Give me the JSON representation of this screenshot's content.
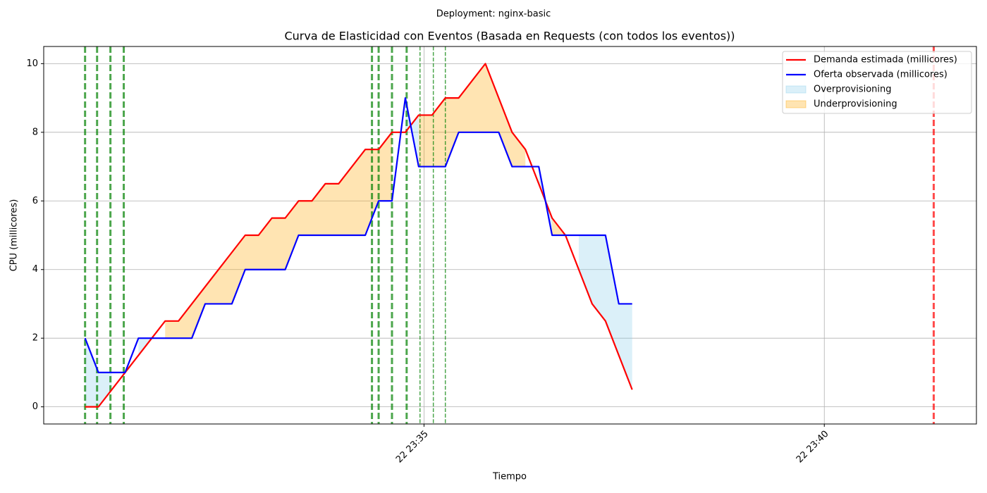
{
  "chart_data": {
    "type": "line",
    "suptitle": "Deployment: nginx-basic",
    "title": "Curva de Elasticidad con Eventos (Basada en Requests (con todos los eventos))",
    "xlabel": "Tiempo",
    "ylabel": "CPU (millicores)",
    "x": [
      84646,
      84656,
      84666,
      84676,
      84686,
      84696,
      84706,
      84716,
      84726,
      84736,
      84746,
      84756,
      84766,
      84776,
      84786,
      84796,
      84806,
      84816,
      84826,
      84836,
      84846,
      84856,
      84866,
      84876,
      84886,
      84896,
      84906,
      84916,
      84926,
      84936,
      84946,
      84956,
      84966,
      84976,
      84986,
      84996,
      85006,
      85016,
      85026,
      85036,
      85046,
      85056
    ],
    "series": [
      {
        "name": "Demanda estimada (millicores)",
        "color": "#ff0000",
        "values": [
          0,
          0,
          0.5,
          1,
          1.5,
          2,
          2.5,
          2.5,
          3,
          3.5,
          4,
          4.5,
          5,
          5,
          5.5,
          5.5,
          6,
          6,
          6.5,
          6.5,
          7,
          7.5,
          7.5,
          8,
          8,
          8.5,
          8.5,
          9,
          9,
          9.5,
          10,
          9,
          8,
          7.5,
          6.5,
          5.5,
          5,
          4,
          3,
          2.5,
          1.5,
          0.5
        ]
      },
      {
        "name": "Oferta observada (millicores)",
        "color": "#0000ff",
        "values": [
          2,
          1,
          1,
          1,
          2,
          2,
          2,
          2,
          2,
          3,
          3,
          3,
          4,
          4,
          4,
          4,
          5,
          5,
          5,
          5,
          5,
          5,
          6,
          6,
          9,
          7,
          7,
          7,
          8,
          8,
          8,
          8,
          7,
          7,
          7,
          5,
          5,
          5,
          5,
          5,
          3,
          3
        ]
      }
    ],
    "fills": [
      {
        "name": "Overprovisioning",
        "color": "#87ceeb",
        "above": 1,
        "below": 0
      },
      {
        "name": "Underprovisioning",
        "color": "#ffa500",
        "above": 0,
        "below": 1
      }
    ],
    "events": [
      {
        "x": 84646,
        "color": "#008000",
        "style": "thick"
      },
      {
        "x": 84655,
        "color": "#008000",
        "style": "thick"
      },
      {
        "x": 84665,
        "color": "#008000",
        "style": "thick"
      },
      {
        "x": 84675,
        "color": "#008000",
        "style": "thick"
      },
      {
        "x": 84861,
        "color": "#008000",
        "style": "thick"
      },
      {
        "x": 84866,
        "color": "#008000",
        "style": "thick"
      },
      {
        "x": 84876,
        "color": "#008000",
        "style": "thick"
      },
      {
        "x": 84887,
        "color": "#008000",
        "style": "thick"
      },
      {
        "x": 84897,
        "color": "#008000",
        "style": "thin"
      },
      {
        "x": 84907,
        "color": "#008000",
        "style": "thin"
      },
      {
        "x": 84916,
        "color": "#008000",
        "style": "thin"
      },
      {
        "x": 85282,
        "color": "#ff0000",
        "style": "thick"
      }
    ],
    "xlim": [
      84615,
      85314
    ],
    "xticks": [
      {
        "value": 84900,
        "label": "22 23:35"
      },
      {
        "value": 85200,
        "label": "22 23:40"
      }
    ],
    "ylim": [
      -0.5,
      10.5
    ],
    "yticks": [
      0,
      2,
      4,
      6,
      8,
      10
    ],
    "grid": true,
    "legend": "upper right"
  }
}
